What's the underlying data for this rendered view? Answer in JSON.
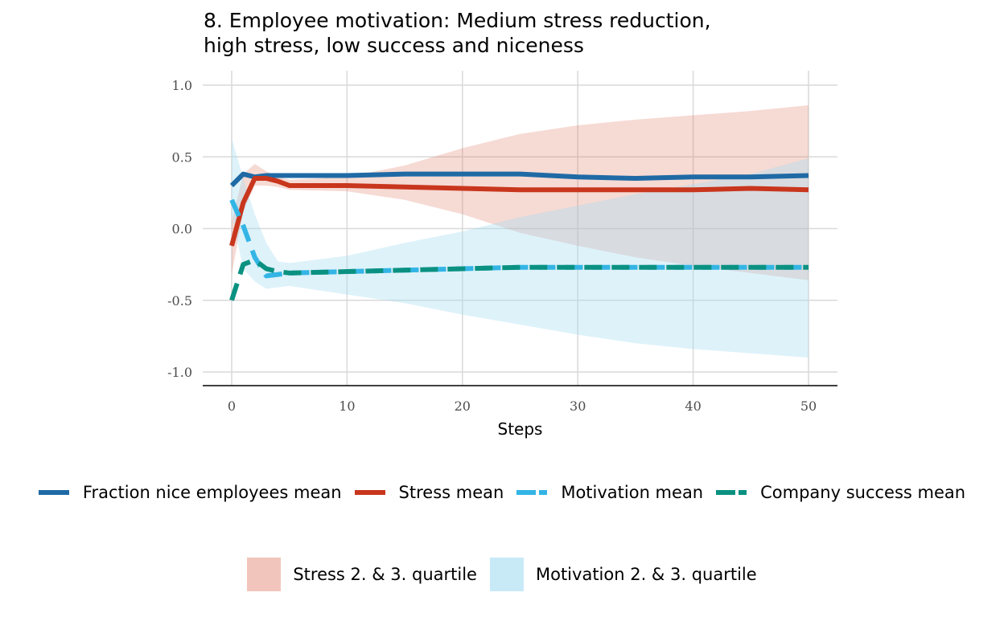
{
  "title": "8. Employee motivation: Medium stress reduction,\nhigh stress, low success and niceness",
  "chart_data": {
    "type": "line",
    "title": "8. Employee motivation: Medium stress reduction,\nhigh stress, low success and niceness",
    "xlabel": "Steps",
    "ylabel": "",
    "xlim": [
      0,
      50
    ],
    "ylim": [
      -1.0,
      1.0
    ],
    "x_ticks": [
      "0",
      "10",
      "20",
      "30",
      "40",
      "50"
    ],
    "y_ticks": [
      "1.0",
      "0.5",
      "0.0",
      "-0.5",
      "-1.0"
    ],
    "grid": true,
    "x": [
      0,
      1,
      2,
      3,
      4,
      5,
      10,
      15,
      20,
      25,
      30,
      35,
      40,
      45,
      50
    ],
    "series": [
      {
        "name": "Fraction nice employees mean",
        "color": "#1f6aa5",
        "dashed": false,
        "values": [
          0.3,
          0.38,
          0.36,
          0.37,
          0.37,
          0.37,
          0.37,
          0.38,
          0.38,
          0.38,
          0.36,
          0.35,
          0.36,
          0.36,
          0.37
        ]
      },
      {
        "name": "Stress mean",
        "color": "#c8361d",
        "dashed": false,
        "values": [
          -0.12,
          0.18,
          0.35,
          0.35,
          0.33,
          0.3,
          0.3,
          0.29,
          0.28,
          0.27,
          0.27,
          0.27,
          0.27,
          0.28,
          0.27
        ]
      },
      {
        "name": "Motivation mean",
        "color": "#33b5e5",
        "dashed": true,
        "values": [
          0.2,
          0.02,
          -0.2,
          -0.33,
          -0.32,
          -0.31,
          -0.3,
          -0.29,
          -0.28,
          -0.27,
          -0.27,
          -0.27,
          -0.27,
          -0.27,
          -0.27
        ]
      },
      {
        "name": "Company success mean",
        "color": "#0a9181",
        "dashed": true,
        "values": [
          -0.5,
          -0.25,
          -0.22,
          -0.28,
          -0.3,
          -0.31,
          -0.3,
          -0.29,
          -0.28,
          -0.27,
          -0.27,
          -0.27,
          -0.27,
          -0.27,
          -0.27
        ]
      }
    ],
    "bands": [
      {
        "name": "Stress 2. & 3. quartile",
        "color": "#e07a66",
        "opacity": 0.28,
        "lower": [
          -0.32,
          0.12,
          0.3,
          0.3,
          0.29,
          0.27,
          0.26,
          0.2,
          0.1,
          -0.03,
          -0.12,
          -0.2,
          -0.26,
          -0.31,
          -0.36
        ],
        "upper": [
          0.05,
          0.38,
          0.45,
          0.4,
          0.36,
          0.34,
          0.36,
          0.44,
          0.56,
          0.66,
          0.72,
          0.76,
          0.79,
          0.82,
          0.86
        ]
      },
      {
        "name": "Motivation 2. & 3. quartile",
        "color": "#a8ddf2",
        "opacity": 0.38,
        "lower": [
          0.1,
          -0.28,
          -0.37,
          -0.42,
          -0.41,
          -0.4,
          -0.46,
          -0.52,
          -0.6,
          -0.67,
          -0.74,
          -0.8,
          -0.84,
          -0.87,
          -0.9
        ],
        "upper": [
          0.63,
          0.35,
          0.1,
          -0.1,
          -0.23,
          -0.24,
          -0.19,
          -0.1,
          -0.02,
          0.08,
          0.16,
          0.24,
          0.31,
          0.38,
          0.49
        ]
      }
    ]
  },
  "legend": {
    "lines": [
      {
        "label": "Fraction nice employees mean",
        "color": "#1f6aa5",
        "dashed": false
      },
      {
        "label": "Stress mean",
        "color": "#c8361d",
        "dashed": false
      },
      {
        "label": "Motivation mean",
        "color": "#33b5e5",
        "dashed": true
      },
      {
        "label": "Company success mean",
        "color": "#0a9181",
        "dashed": true
      }
    ],
    "bands": [
      {
        "label": "Stress 2. & 3. quartile",
        "color": "#f2c5bc"
      },
      {
        "label": "Motivation 2. & 3. quartile",
        "color": "#c8eaf7"
      }
    ]
  }
}
